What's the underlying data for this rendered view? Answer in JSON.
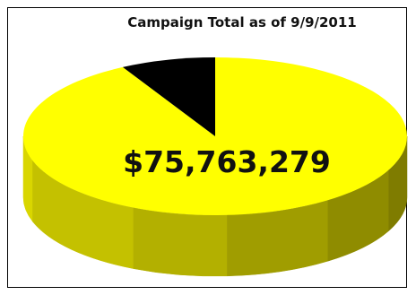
{
  "chart_data": {
    "type": "pie",
    "title": "Campaign Total as of 9/9/2011",
    "center_label": "$75,763,279",
    "slices": [
      {
        "share": 0.08,
        "color": "#000000"
      },
      {
        "share": 0.92,
        "color": "#ffff00"
      }
    ],
    "style": "3d"
  }
}
